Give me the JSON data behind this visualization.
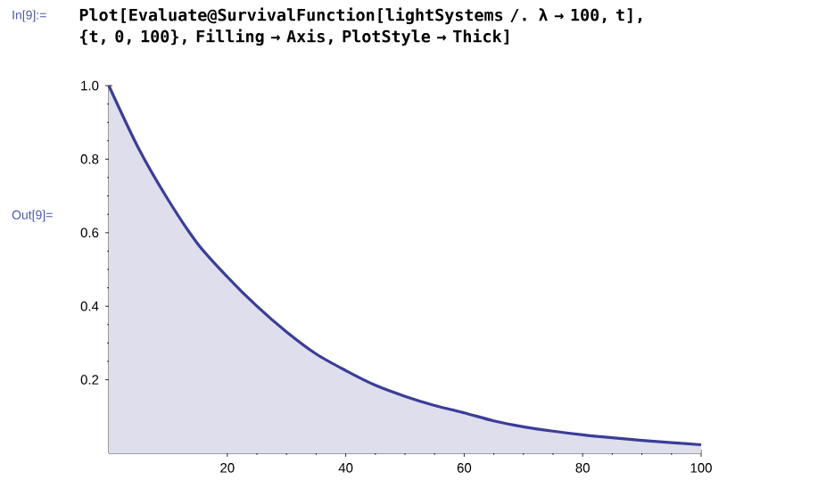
{
  "chart_data": {
    "type": "area",
    "title": "Plot[Evaluate@SurvivalFunction[lightSystems /. λ → 100, t], {t, 0, 100}, Filling → Axis, PlotStyle → Thick]",
    "annotations": [
      "In[9]:=",
      "Out[9]="
    ],
    "series": [
      {
        "color": "#3b3d97",
        "x": [
          0,
          5,
          10,
          15,
          20,
          25,
          30,
          35,
          40,
          45,
          50,
          55,
          60,
          65,
          70,
          75,
          80,
          85,
          90,
          95,
          100
        ],
        "values": [
          1.0,
          0.83,
          0.69,
          0.57,
          0.48,
          0.4,
          0.33,
          0.27,
          0.225,
          0.185,
          0.155,
          0.13,
          0.11,
          0.088,
          0.072,
          0.06,
          0.05,
          0.042,
          0.035,
          0.029,
          0.023
        ]
      }
    ],
    "xlim": [
      0,
      100
    ],
    "ylim": [
      0,
      1.0
    ],
    "xticks": [
      20,
      40,
      60,
      80,
      100
    ],
    "yticks": [
      {
        "value": 0.2,
        "label": "0.2"
      },
      {
        "value": 0.4,
        "label": "0.4"
      },
      {
        "value": 0.6,
        "label": "0.6"
      },
      {
        "value": 0.8,
        "label": "0.8"
      },
      {
        "value": 1.0,
        "label": "1.0"
      }
    ],
    "grid": false,
    "marker": "none",
    "line_style": "solid"
  }
}
